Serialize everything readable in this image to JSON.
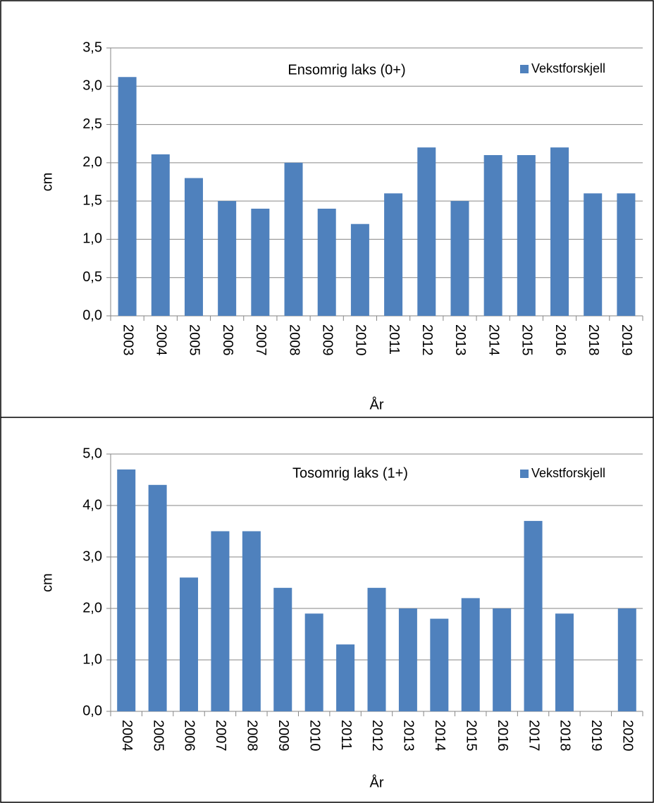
{
  "chart_data": [
    {
      "type": "bar",
      "title": "Ensomrig laks (0+)",
      "ylabel": "cm",
      "xlabel": "År",
      "categories": [
        "2003",
        "2004",
        "2005",
        "2006",
        "2007",
        "2008",
        "2009",
        "2010",
        "2011",
        "2012",
        "2013",
        "2014",
        "2015",
        "2016",
        "2018",
        "2019"
      ],
      "series": [
        {
          "name": "Vekstforskjell",
          "color": "#4f81bd",
          "values": [
            3.12,
            2.11,
            1.8,
            1.5,
            1.4,
            2.0,
            1.4,
            1.2,
            1.6,
            2.2,
            1.5,
            2.1,
            2.1,
            2.2,
            1.6,
            1.6
          ]
        }
      ],
      "ylim": [
        0,
        3.5
      ],
      "yticks": [
        {
          "value": 0,
          "label": "0,0"
        },
        {
          "value": 0.5,
          "label": "0,5"
        },
        {
          "value": 1,
          "label": "1,0"
        },
        {
          "value": 1.5,
          "label": "1,5"
        },
        {
          "value": 2,
          "label": "2,0"
        },
        {
          "value": 2.5,
          "label": "2,5"
        },
        {
          "value": 3,
          "label": "3,0"
        },
        {
          "value": 3.5,
          "label": "3,5"
        }
      ],
      "grid": true,
      "legend": "top-right"
    },
    {
      "type": "bar",
      "title": "Tosomrig laks (1+)",
      "ylabel": "cm",
      "xlabel": "År",
      "categories": [
        "2004",
        "2005",
        "2006",
        "2007",
        "2008",
        "2009",
        "2010",
        "2011",
        "2012",
        "2013",
        "2014",
        "2015",
        "2016",
        "2017",
        "2018",
        "2019",
        "2020"
      ],
      "series": [
        {
          "name": "Vekstforskjell",
          "color": "#4f81bd",
          "values": [
            4.7,
            4.4,
            2.6,
            3.5,
            3.5,
            2.4,
            1.9,
            1.3,
            2.4,
            2.0,
            1.8,
            2.2,
            2.0,
            3.7,
            1.9,
            null,
            2.0
          ]
        }
      ],
      "ylim": [
        0,
        5
      ],
      "yticks": [
        {
          "value": 0,
          "label": "0,0"
        },
        {
          "value": 1,
          "label": "1,0"
        },
        {
          "value": 2,
          "label": "2,0"
        },
        {
          "value": 3,
          "label": "3,0"
        },
        {
          "value": 4,
          "label": "4,0"
        },
        {
          "value": 5,
          "label": "5,0"
        }
      ],
      "grid": true,
      "legend": "top-right"
    }
  ]
}
